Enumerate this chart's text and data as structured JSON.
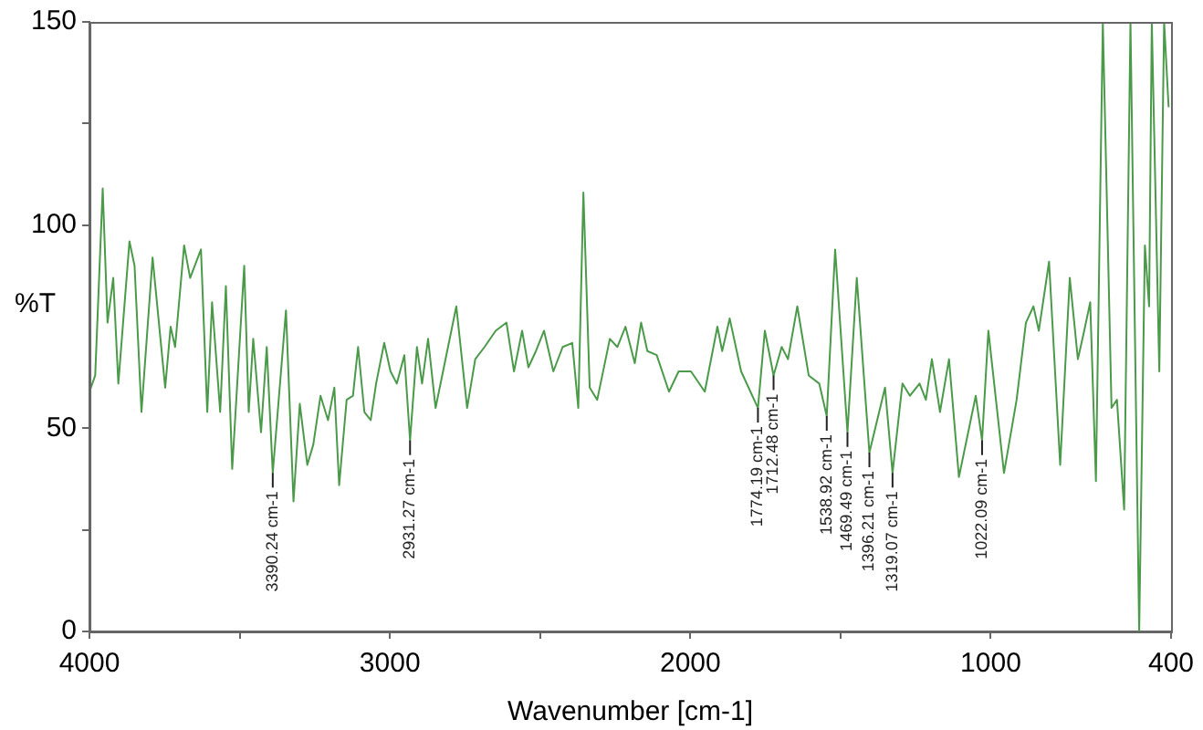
{
  "chart_data": {
    "type": "line",
    "xlabel": "Wavenumber [cm-1]",
    "ylabel": "%T",
    "xlim": [
      4000,
      400
    ],
    "xticks": [
      4000,
      {
        "value": 3500,
        "label": null
      },
      3000,
      {
        "value": 2500,
        "label": null
      },
      2000,
      {
        "value": 1500,
        "label": null
      },
      1000,
      400
    ],
    "ylim": [
      0,
      150
    ],
    "yticks": [
      0,
      {
        "value": 25,
        "label": null
      },
      50,
      100,
      {
        "value": 125,
        "label": null
      },
      150
    ],
    "grid": false,
    "legend": false,
    "marker": "none",
    "line_style": "solid",
    "series": [
      {
        "color": "#4a9a4a",
        "x": [
          4000,
          3981,
          3956,
          3940,
          3921,
          3904,
          3867,
          3850,
          3827,
          3790,
          3748,
          3730,
          3715,
          3685,
          3665,
          3629,
          3608,
          3592,
          3565,
          3546,
          3525,
          3485,
          3470,
          3455,
          3429,
          3410,
          3390,
          3346,
          3321,
          3300,
          3275,
          3255,
          3231,
          3206,
          3185,
          3169,
          3144,
          3123,
          3106,
          3085,
          3064,
          3046,
          3019,
          2998,
          2977,
          2952,
          2933,
          2910,
          2893,
          2873,
          2848,
          2779,
          2743,
          2716,
          2685,
          2648,
          2612,
          2587,
          2560,
          2539,
          2514,
          2487,
          2456,
          2425,
          2393,
          2373,
          2356,
          2335,
          2310,
          2268,
          2243,
          2216,
          2185,
          2164,
          2143,
          2112,
          2071,
          2039,
          1998,
          1952,
          1910,
          1894,
          1869,
          1831,
          1775,
          1752,
          1723,
          1696,
          1675,
          1644,
          1606,
          1571,
          1546,
          1518,
          1477,
          1446,
          1404,
          1352,
          1327,
          1294,
          1269,
          1237,
          1216,
          1196,
          1169,
          1139,
          1106,
          1050,
          1029,
          1008,
          956,
          914,
          883,
          858,
          840,
          806,
          769,
          737,
          710,
          689,
          669,
          650,
          627,
          598,
          580,
          556,
          535,
          506,
          487,
          473,
          464,
          439,
          423,
          408
        ],
        "values": [
          59,
          63,
          109,
          76,
          87,
          61,
          96,
          90,
          54,
          92,
          60,
          75,
          70,
          95,
          87,
          94,
          54,
          81,
          54,
          85,
          40,
          90,
          54,
          72,
          49,
          70,
          39,
          79,
          32,
          56,
          41,
          46,
          58,
          52,
          60,
          36,
          57,
          58,
          70,
          54,
          52,
          61,
          71,
          64,
          61,
          68,
          47,
          70,
          61,
          72,
          55,
          80,
          55,
          67,
          70,
          74,
          76,
          64,
          74,
          65,
          69,
          74,
          64,
          70,
          71,
          55,
          108,
          60,
          57,
          72,
          70,
          75,
          66,
          76,
          69,
          68,
          59,
          64,
          64,
          59,
          75,
          69,
          77,
          64,
          55,
          74,
          63,
          70,
          67,
          80,
          63,
          61,
          53,
          94,
          49,
          87,
          44,
          60,
          39,
          61,
          58,
          61,
          57,
          67,
          54,
          67,
          38,
          58,
          47,
          74,
          39,
          57,
          76,
          80,
          74,
          91,
          41,
          87,
          67,
          74,
          81,
          37,
          150,
          55,
          57,
          30,
          150,
          0,
          95,
          80,
          150,
          64,
          150,
          129
        ]
      }
    ],
    "annotations": [
      {
        "text": "3390.24 cm-1",
        "x": 3390,
        "y": 39
      },
      {
        "text": "2931.27 cm-1",
        "x": 2933,
        "y": 47
      },
      {
        "text": "1774.19 cm-1",
        "x": 1775,
        "y": 55
      },
      {
        "text": "1712.48 cm-1",
        "x": 1723,
        "y": 63
      },
      {
        "text": "1538.92 cm-1",
        "x": 1546,
        "y": 53
      },
      {
        "text": "1469.49 cm-1",
        "x": 1477,
        "y": 49
      },
      {
        "text": "1396.21 cm-1",
        "x": 1404,
        "y": 44
      },
      {
        "text": "1319.07 cm-1",
        "x": 1327,
        "y": 39
      },
      {
        "text": "1022.09 cm-1",
        "x": 1029,
        "y": 47
      }
    ]
  }
}
